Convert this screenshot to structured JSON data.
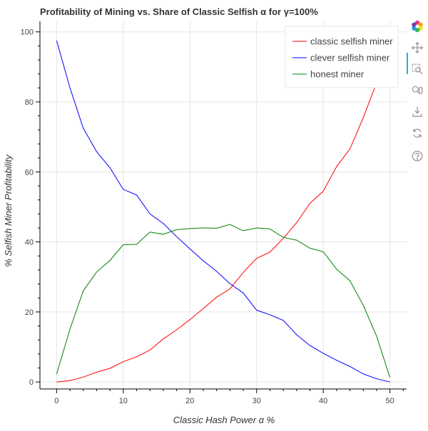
{
  "chart_data": {
    "type": "line",
    "title": "Profitability of Mining vs. Share of Classic Selfish α for γ=100%",
    "xlabel": "Classic Hash Power α %",
    "ylabel": "% Selfish Miner Profitability",
    "xlim": [
      -2.5,
      52.5
    ],
    "ylim": [
      -2,
      103
    ],
    "xticks": [
      0,
      10,
      20,
      30,
      40,
      50
    ],
    "yticks": [
      0,
      20,
      40,
      60,
      80,
      100
    ],
    "x_minor_step": 2,
    "y_minor_step": 4,
    "grid": true,
    "legend": "top-right",
    "x": [
      0,
      2,
      4,
      6,
      8,
      10,
      12,
      14,
      16,
      18,
      20,
      22,
      24,
      26,
      28,
      30,
      32,
      34,
      36,
      38,
      40,
      42,
      44,
      46,
      48,
      50
    ],
    "series": [
      {
        "name": "classic selfish miner",
        "color": "#ff0000",
        "values": [
          0,
          0.4,
          1.4,
          2.8,
          3.9,
          5.8,
          7.2,
          9.1,
          12.3,
          14.9,
          17.8,
          21,
          24.2,
          26.6,
          31.3,
          35.3,
          37.1,
          41,
          45.5,
          51,
          54.5,
          61.5,
          66.6,
          75.5,
          85.5,
          98
        ]
      },
      {
        "name": "clever selfish miner",
        "color": "#0000ff",
        "values": [
          97.5,
          84,
          72.5,
          65.8,
          61.2,
          55,
          53.4,
          48,
          45.3,
          41.5,
          38,
          34.6,
          31.6,
          28.1,
          25.4,
          20.5,
          19.2,
          17.6,
          13.5,
          10.4,
          8.2,
          6.2,
          4.4,
          2.3,
          0.9,
          0
        ]
      },
      {
        "name": "honest miner",
        "color": "#008000",
        "values": [
          2.3,
          15.1,
          26,
          31.4,
          34.7,
          39.2,
          39.3,
          42.8,
          42.2,
          43.5,
          43.8,
          44,
          43.9,
          45,
          43.2,
          44,
          43.7,
          41.3,
          40.5,
          38.2,
          37.2,
          32.2,
          28.9,
          21.9,
          13.1,
          1.3
        ]
      }
    ]
  },
  "toolbar": {
    "tools": [
      {
        "name": "bokeh-logo-icon"
      },
      {
        "name": "pan-icon"
      },
      {
        "name": "box-zoom-icon"
      },
      {
        "name": "wheel-zoom-icon"
      },
      {
        "name": "save-icon"
      },
      {
        "name": "reset-icon"
      },
      {
        "name": "help-icon"
      }
    ]
  }
}
